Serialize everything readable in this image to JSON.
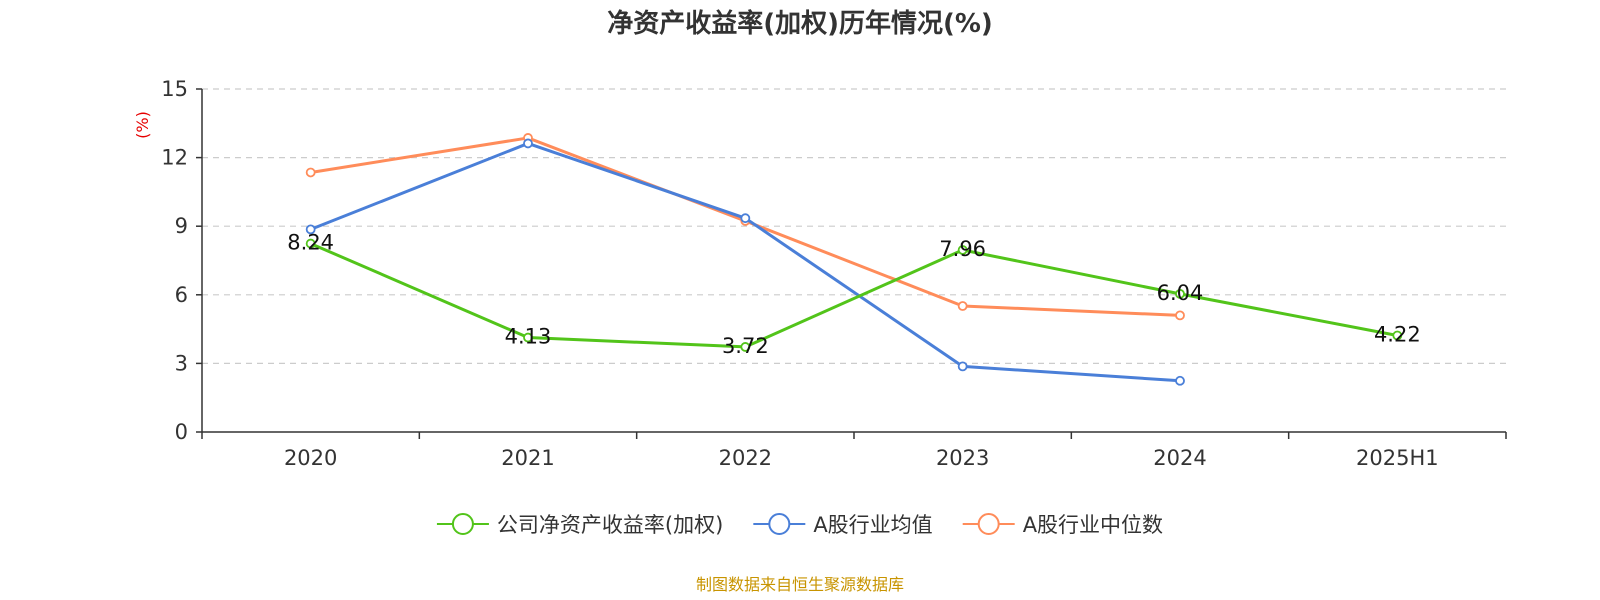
{
  "chart_data": {
    "type": "line",
    "title": "净资产收益率(加权)历年情况(%)",
    "ylabel": "(%)",
    "categories": [
      "2020",
      "2021",
      "2022",
      "2023",
      "2024",
      "2025H1"
    ],
    "ylim": [
      0,
      15
    ],
    "yticks": [
      0,
      3,
      6,
      9,
      12,
      15
    ],
    "grid": true,
    "legend_position": "bottom",
    "series": [
      {
        "name": "公司净资产收益率(加权)",
        "color": "#52c41a",
        "values": [
          8.24,
          4.13,
          3.72,
          7.96,
          6.04,
          4.22
        ],
        "labels": [
          "8.24",
          "4.13",
          "3.72",
          "7.96",
          "6.04",
          "4.22"
        ]
      },
      {
        "name": "A股行业均值",
        "color": "#4a7fd8",
        "values": [
          8.86,
          12.62,
          9.35,
          2.87,
          2.24,
          null
        ]
      },
      {
        "name": "A股行业中位数",
        "color": "#ff8c5a",
        "values": [
          11.35,
          12.86,
          9.23,
          5.51,
          5.1,
          null
        ]
      }
    ]
  },
  "source": "制图数据来自恒生聚源数据库",
  "colors": {
    "ylabel": "#e60000",
    "source": "#c89400",
    "axis": "#333333",
    "grid": "#cccccc"
  }
}
